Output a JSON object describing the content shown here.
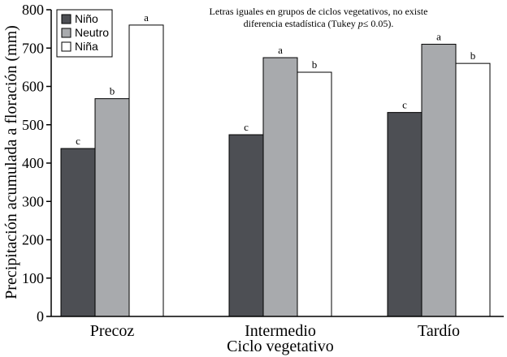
{
  "chart_data": {
    "type": "bar",
    "title": "",
    "xlabel": "Ciclo vegetativo",
    "ylabel": "Precipitación acumulada a floración (mm)",
    "ylim": [
      0,
      800
    ],
    "yticks": [
      0,
      100,
      200,
      300,
      400,
      500,
      600,
      700,
      800
    ],
    "categories": [
      "Precoz",
      "Intermedio",
      "Tardío"
    ],
    "series": [
      {
        "name": "Niño",
        "color": "#4d4f54",
        "values": [
          438,
          474,
          532
        ],
        "letters": [
          "c",
          "c",
          "c"
        ]
      },
      {
        "name": "Neutro",
        "color": "#a8aaad",
        "values": [
          568,
          675,
          710
        ],
        "letters": [
          "b",
          "a",
          "a"
        ]
      },
      {
        "name": "Niña",
        "color": "#ffffff",
        "values": [
          760,
          637,
          660
        ],
        "letters": [
          "a",
          "b",
          "b"
        ]
      }
    ],
    "legend_position": "top-left",
    "note": {
      "line1": "Letras iguales en grupos de ciclos vegetativos, no existe",
      "line2_pre": "diferencia estadística (Tukey ",
      "line2_italic": "p",
      "line2_post": "≤ 0.05)."
    }
  }
}
